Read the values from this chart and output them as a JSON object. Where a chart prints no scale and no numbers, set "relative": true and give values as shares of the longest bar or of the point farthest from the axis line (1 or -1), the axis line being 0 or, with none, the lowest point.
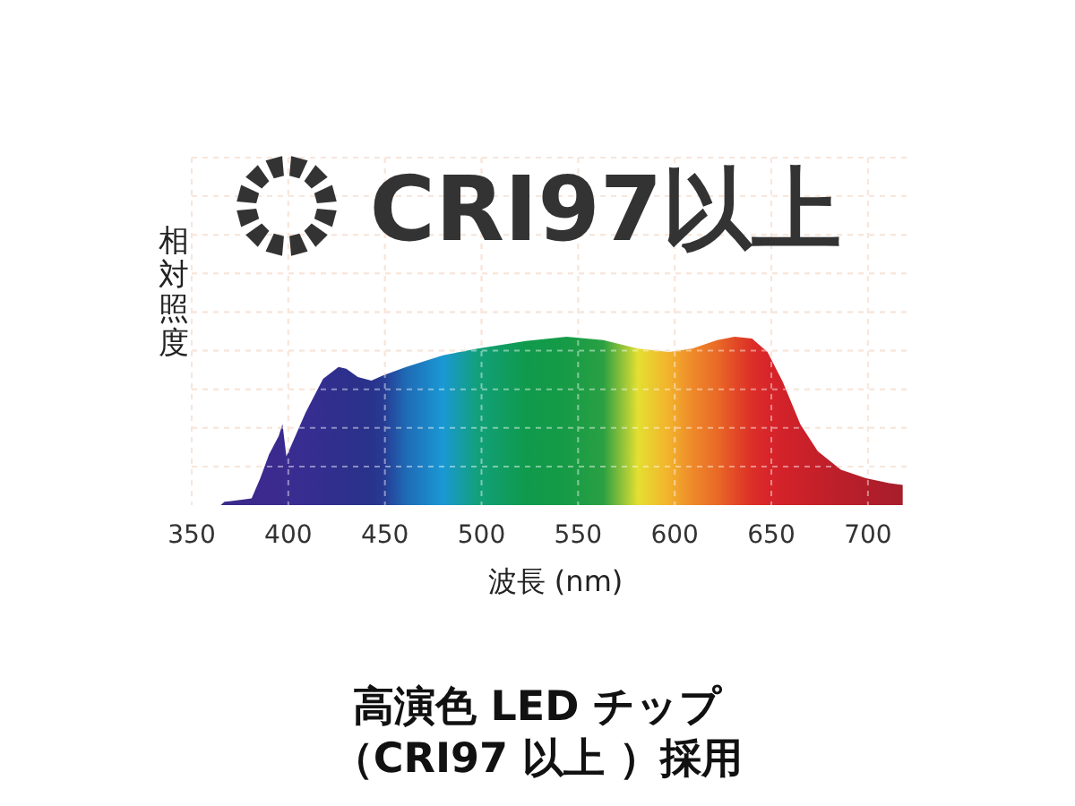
{
  "chart_data": {
    "type": "area",
    "title": "CRI97以上",
    "xlabel": "波長 (nm)",
    "ylabel": "相対照度",
    "relative": true,
    "grid": true,
    "x": [
      365,
      367,
      375,
      381,
      385.5,
      390,
      395,
      397,
      399,
      401,
      409,
      418,
      426,
      430,
      436,
      443,
      449,
      461,
      480,
      498,
      523,
      544,
      563,
      581,
      597,
      609,
      622,
      631,
      640,
      648,
      656,
      665,
      674,
      686,
      699,
      711,
      718
    ],
    "series": [
      {
        "values": [
          0,
          0.02,
          0.03,
          0.04,
          0.16,
          0.3,
          0.41,
          0.48,
          0.29,
          0.34,
          0.55,
          0.75,
          0.82,
          0.81,
          0.76,
          0.74,
          0.77,
          0.82,
          0.89,
          0.93,
          0.975,
          1.0,
          0.98,
          0.93,
          0.91,
          0.93,
          0.98,
          1.0,
          0.99,
          0.91,
          0.73,
          0.48,
          0.32,
          0.21,
          0.16,
          0.13,
          0.12
        ],
        "colors": [
          "#3a2a8a",
          "#3a2a8a",
          "#3b2a8c",
          "#3b2a8c",
          "#3c2a8e",
          "#3c2a8e",
          "#3b2b8f",
          "#3b2b8f",
          "#3a2c90",
          "#3a2c90",
          "#372d90",
          "#332e8f",
          "#2f2f8d",
          "#2d308c",
          "#2b318b",
          "#29338c",
          "#273a93",
          "#1f6bb5",
          "#1a98d4",
          "#12a07a",
          "#0f9a4c",
          "#169b46",
          "#2aa043",
          "#e4df32",
          "#f3b22c",
          "#ee8a2a",
          "#e96a27",
          "#e34a26",
          "#dc2f28",
          "#d8252a",
          "#d2222a",
          "#cc212a",
          "#c4202a",
          "#bb1f2a",
          "#b31e2a",
          "#ab1e2b",
          "#a61e2b"
        ]
      }
    ],
    "xlim": [
      350,
      720
    ],
    "xticks": [
      350,
      400,
      450,
      500,
      550,
      600,
      650,
      700
    ],
    "annotations": [
      "高演色 LED チップ",
      "（CRI97 以上 ）採用"
    ]
  }
}
